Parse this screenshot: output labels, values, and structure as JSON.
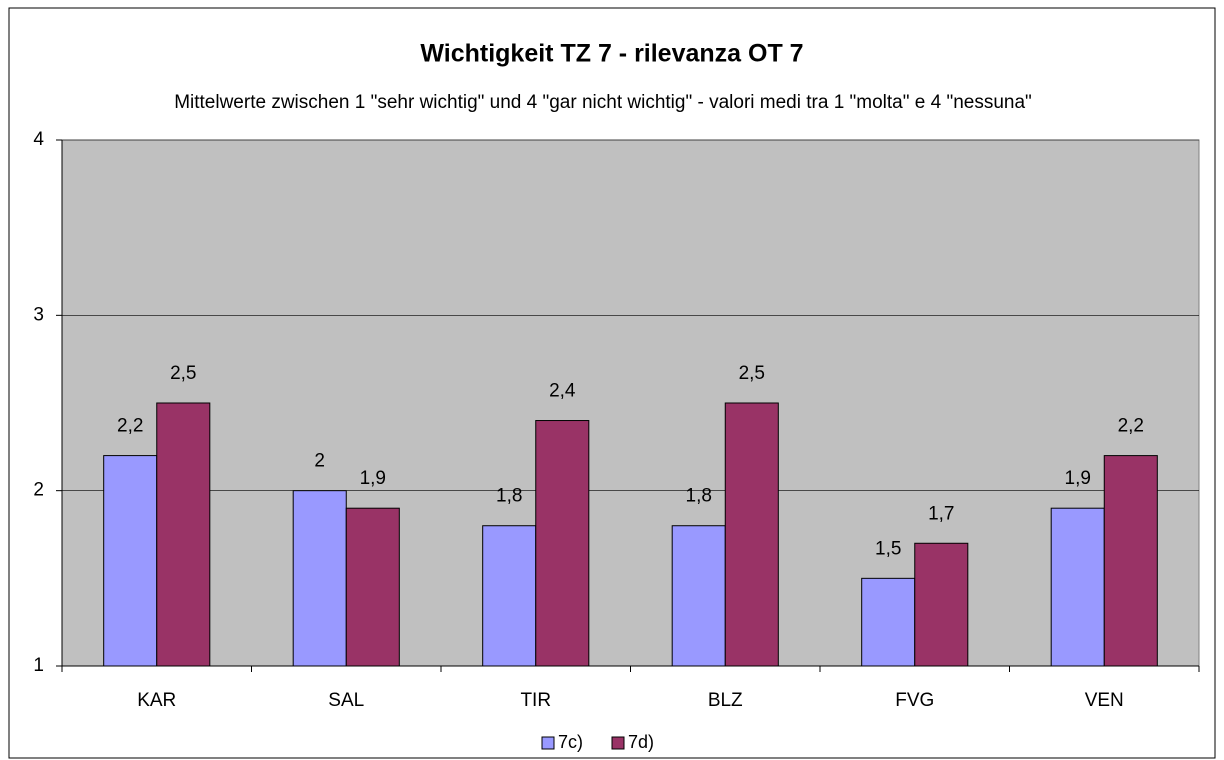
{
  "chart_data": {
    "type": "bar",
    "title": "Wichtigkeit TZ 7 - rilevanza OT 7",
    "subtitle": "Mittelwerte zwischen 1 \"sehr wichtig\" und 4 \"gar nicht wichtig\" - valori medi tra 1 \"molta\" e 4 \"nessuna\"",
    "categories": [
      "KAR",
      "SAL",
      "TIR",
      "BLZ",
      "FVG",
      "VEN"
    ],
    "series": [
      {
        "name": "7c)",
        "color": "#9999ff",
        "values": [
          2.2,
          2,
          1.8,
          1.8,
          1.5,
          1.9
        ],
        "value_labels": [
          "2,2",
          "2",
          "1,8",
          "1,8",
          "1,5",
          "1,9"
        ]
      },
      {
        "name": "7d)",
        "color": "#993366",
        "values": [
          2.5,
          1.9,
          2.4,
          2.5,
          1.7,
          2.2
        ],
        "value_labels": [
          "2,5",
          "1,9",
          "2,4",
          "2,5",
          "1,7",
          "2,2"
        ]
      }
    ],
    "ylim": [
      1,
      4
    ],
    "yticks": [
      1,
      2,
      3,
      4
    ],
    "grid": true,
    "legend": "bottom"
  }
}
